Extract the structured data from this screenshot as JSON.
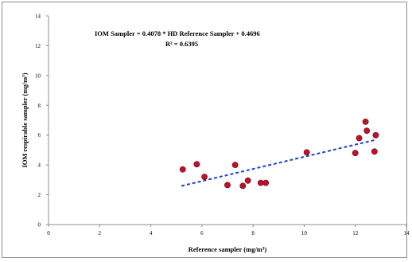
{
  "chart_data": {
    "type": "scatter",
    "title": "",
    "xlabel": "Reference sampler (mg/m³)",
    "ylabel": "IOM respirable sampler (mg/m³)",
    "xlim": [
      0,
      14
    ],
    "ylim": [
      0,
      14
    ],
    "x_ticks": [
      "0",
      "2",
      "4",
      "6",
      "8",
      "10",
      "12",
      "14"
    ],
    "y_ticks": [
      "0",
      "2",
      "4",
      "6",
      "8",
      "10",
      "12",
      "14"
    ],
    "grid": false,
    "annotations": {
      "equation": "IOM Sampler = 0.4078 * HD Reference Sampler + 0.4696",
      "r_squared": "R² = 0.6395"
    },
    "trendline": {
      "slope": 0.4078,
      "intercept": 0.4696,
      "x_range": [
        5.2,
        12.8
      ],
      "style": "dashed",
      "color": "#1f3fdc"
    },
    "marker_color": "#c0102a",
    "points": [
      {
        "x": 5.25,
        "y": 3.7
      },
      {
        "x": 5.8,
        "y": 4.05
      },
      {
        "x": 6.1,
        "y": 3.2
      },
      {
        "x": 7.0,
        "y": 2.65
      },
      {
        "x": 7.3,
        "y": 4.0
      },
      {
        "x": 7.6,
        "y": 2.6
      },
      {
        "x": 7.8,
        "y": 2.95
      },
      {
        "x": 8.3,
        "y": 2.8
      },
      {
        "x": 8.5,
        "y": 2.8
      },
      {
        "x": 10.1,
        "y": 4.85
      },
      {
        "x": 12.0,
        "y": 4.8
      },
      {
        "x": 12.15,
        "y": 5.8
      },
      {
        "x": 12.4,
        "y": 6.9
      },
      {
        "x": 12.45,
        "y": 6.3
      },
      {
        "x": 12.75,
        "y": 4.9
      },
      {
        "x": 12.8,
        "y": 6.0
      }
    ]
  }
}
